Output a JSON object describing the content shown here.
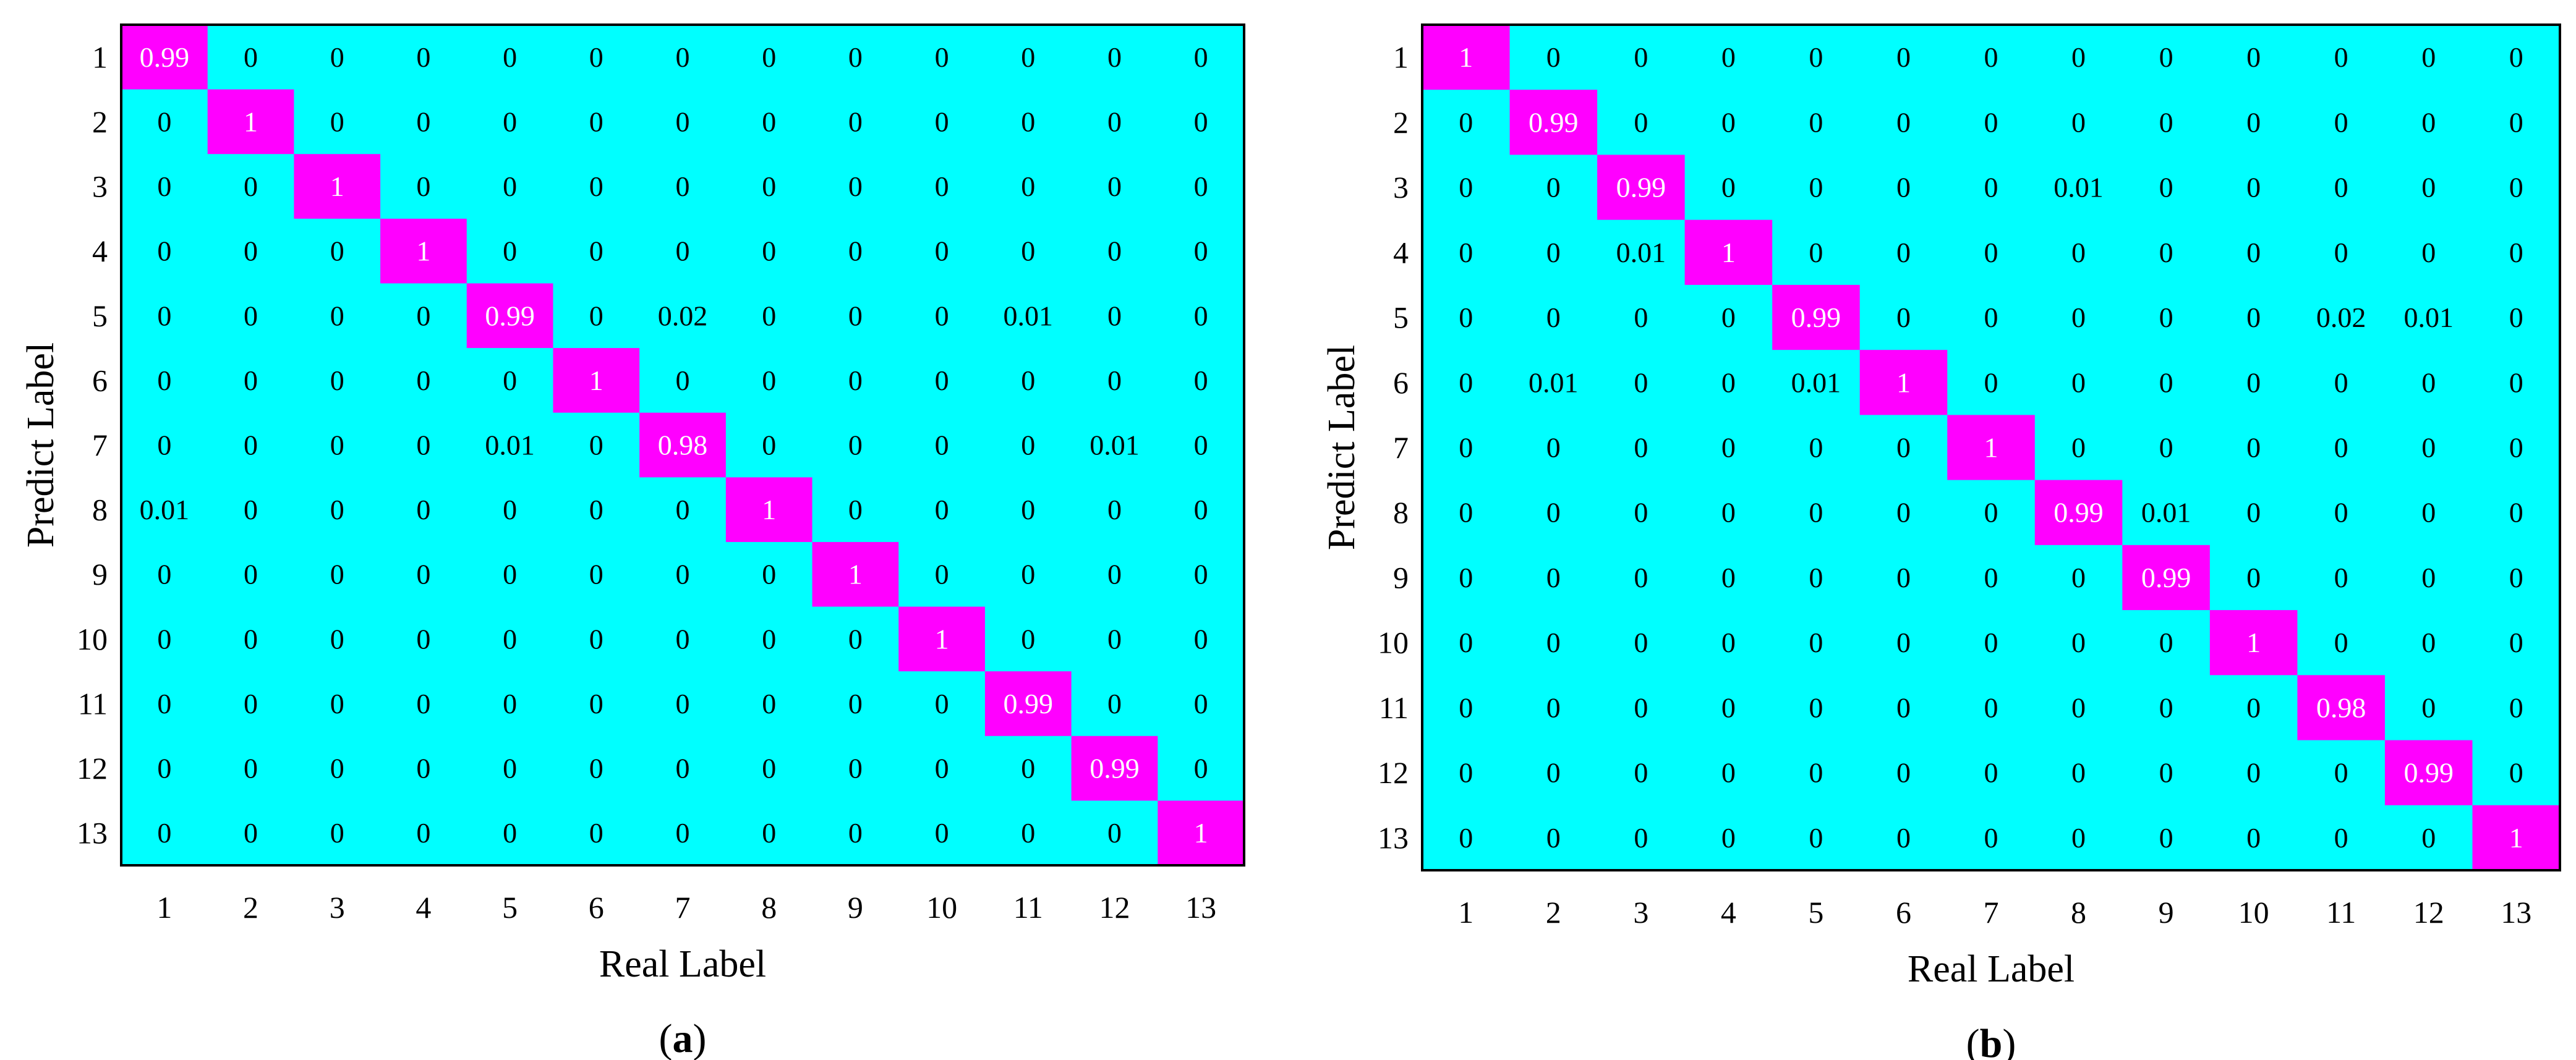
{
  "colors": {
    "background_cell": "#00ffff",
    "diagonal_cell": "#ff00ff",
    "cell_text": "#000000",
    "diagonal_text": "#ffffff",
    "border": "#000000"
  },
  "chart_data": [
    {
      "type": "heatmap",
      "panel_label": "a",
      "xlabel": "Real Label",
      "ylabel": "Predict Label",
      "x_ticks": [
        "1",
        "2",
        "3",
        "4",
        "5",
        "6",
        "7",
        "8",
        "9",
        "10",
        "11",
        "12",
        "13"
      ],
      "y_ticks": [
        "1",
        "2",
        "3",
        "4",
        "5",
        "6",
        "7",
        "8",
        "9",
        "10",
        "11",
        "12",
        "13"
      ],
      "cells": [
        [
          "0.99",
          "0",
          "0",
          "0",
          "0",
          "0",
          "0",
          "0",
          "0",
          "0",
          "0",
          "0",
          "0"
        ],
        [
          "0",
          "1",
          "0",
          "0",
          "0",
          "0",
          "0",
          "0",
          "0",
          "0",
          "0",
          "0",
          "0"
        ],
        [
          "0",
          "0",
          "1",
          "0",
          "0",
          "0",
          "0",
          "0",
          "0",
          "0",
          "0",
          "0",
          "0"
        ],
        [
          "0",
          "0",
          "0",
          "1",
          "0",
          "0",
          "0",
          "0",
          "0",
          "0",
          "0",
          "0",
          "0"
        ],
        [
          "0",
          "0",
          "0",
          "0",
          "0.99",
          "0",
          "0.02",
          "0",
          "0",
          "0",
          "0.01",
          "0",
          "0"
        ],
        [
          "0",
          "0",
          "0",
          "0",
          "0",
          "1",
          "0",
          "0",
          "0",
          "0",
          "0",
          "0",
          "0"
        ],
        [
          "0",
          "0",
          "0",
          "0",
          "0.01",
          "0",
          "0.98",
          "0",
          "0",
          "0",
          "0",
          "0.01",
          "0"
        ],
        [
          "0.01",
          "0",
          "0",
          "0",
          "0",
          "0",
          "0",
          "1",
          "0",
          "0",
          "0",
          "0",
          "0"
        ],
        [
          "0",
          "0",
          "0",
          "0",
          "0",
          "0",
          "0",
          "0",
          "1",
          "0",
          "0",
          "0",
          "0"
        ],
        [
          "0",
          "0",
          "0",
          "0",
          "0",
          "0",
          "0",
          "0",
          "0",
          "1",
          "0",
          "0",
          "0"
        ],
        [
          "0",
          "0",
          "0",
          "0",
          "0",
          "0",
          "0",
          "0",
          "0",
          "0",
          "0.99",
          "0",
          "0"
        ],
        [
          "0",
          "0",
          "0",
          "0",
          "0",
          "0",
          "0",
          "0",
          "0",
          "0",
          "0",
          "0.99",
          "0"
        ],
        [
          "0",
          "0",
          "0",
          "0",
          "0",
          "0",
          "0",
          "0",
          "0",
          "0",
          "0",
          "0",
          "1"
        ]
      ]
    },
    {
      "type": "heatmap",
      "panel_label": "b",
      "xlabel": "Real Label",
      "ylabel": "Predict Label",
      "x_ticks": [
        "1",
        "2",
        "3",
        "4",
        "5",
        "6",
        "7",
        "8",
        "9",
        "10",
        "11",
        "12",
        "13"
      ],
      "y_ticks": [
        "1",
        "2",
        "3",
        "4",
        "5",
        "6",
        "7",
        "8",
        "9",
        "10",
        "11",
        "12",
        "13"
      ],
      "cells": [
        [
          "1",
          "0",
          "0",
          "0",
          "0",
          "0",
          "0",
          "0",
          "0",
          "0",
          "0",
          "0",
          "0"
        ],
        [
          "0",
          "0.99",
          "0",
          "0",
          "0",
          "0",
          "0",
          "0",
          "0",
          "0",
          "0",
          "0",
          "0"
        ],
        [
          "0",
          "0",
          "0.99",
          "0",
          "0",
          "0",
          "0",
          "0.01",
          "0",
          "0",
          "0",
          "0",
          "0"
        ],
        [
          "0",
          "0",
          "0.01",
          "1",
          "0",
          "0",
          "0",
          "0",
          "0",
          "0",
          "0",
          "0",
          "0"
        ],
        [
          "0",
          "0",
          "0",
          "0",
          "0.99",
          "0",
          "0",
          "0",
          "0",
          "0",
          "0.02",
          "0.01",
          "0"
        ],
        [
          "0",
          "0.01",
          "0",
          "0",
          "0.01",
          "1",
          "0",
          "0",
          "0",
          "0",
          "0",
          "0",
          "0"
        ],
        [
          "0",
          "0",
          "0",
          "0",
          "0",
          "0",
          "1",
          "0",
          "0",
          "0",
          "0",
          "0",
          "0"
        ],
        [
          "0",
          "0",
          "0",
          "0",
          "0",
          "0",
          "0",
          "0.99",
          "0.01",
          "0",
          "0",
          "0",
          "0"
        ],
        [
          "0",
          "0",
          "0",
          "0",
          "0",
          "0",
          "0",
          "0",
          "0.99",
          "0",
          "0",
          "0",
          "0"
        ],
        [
          "0",
          "0",
          "0",
          "0",
          "0",
          "0",
          "0",
          "0",
          "0",
          "1",
          "0",
          "0",
          "0"
        ],
        [
          "0",
          "0",
          "0",
          "0",
          "0",
          "0",
          "0",
          "0",
          "0",
          "0",
          "0.98",
          "0",
          "0"
        ],
        [
          "0",
          "0",
          "0",
          "0",
          "0",
          "0",
          "0",
          "0",
          "0",
          "0",
          "0",
          "0.99",
          "0"
        ],
        [
          "0",
          "0",
          "0",
          "0",
          "0",
          "0",
          "0",
          "0",
          "0",
          "0",
          "0",
          "0",
          "1"
        ]
      ]
    }
  ]
}
